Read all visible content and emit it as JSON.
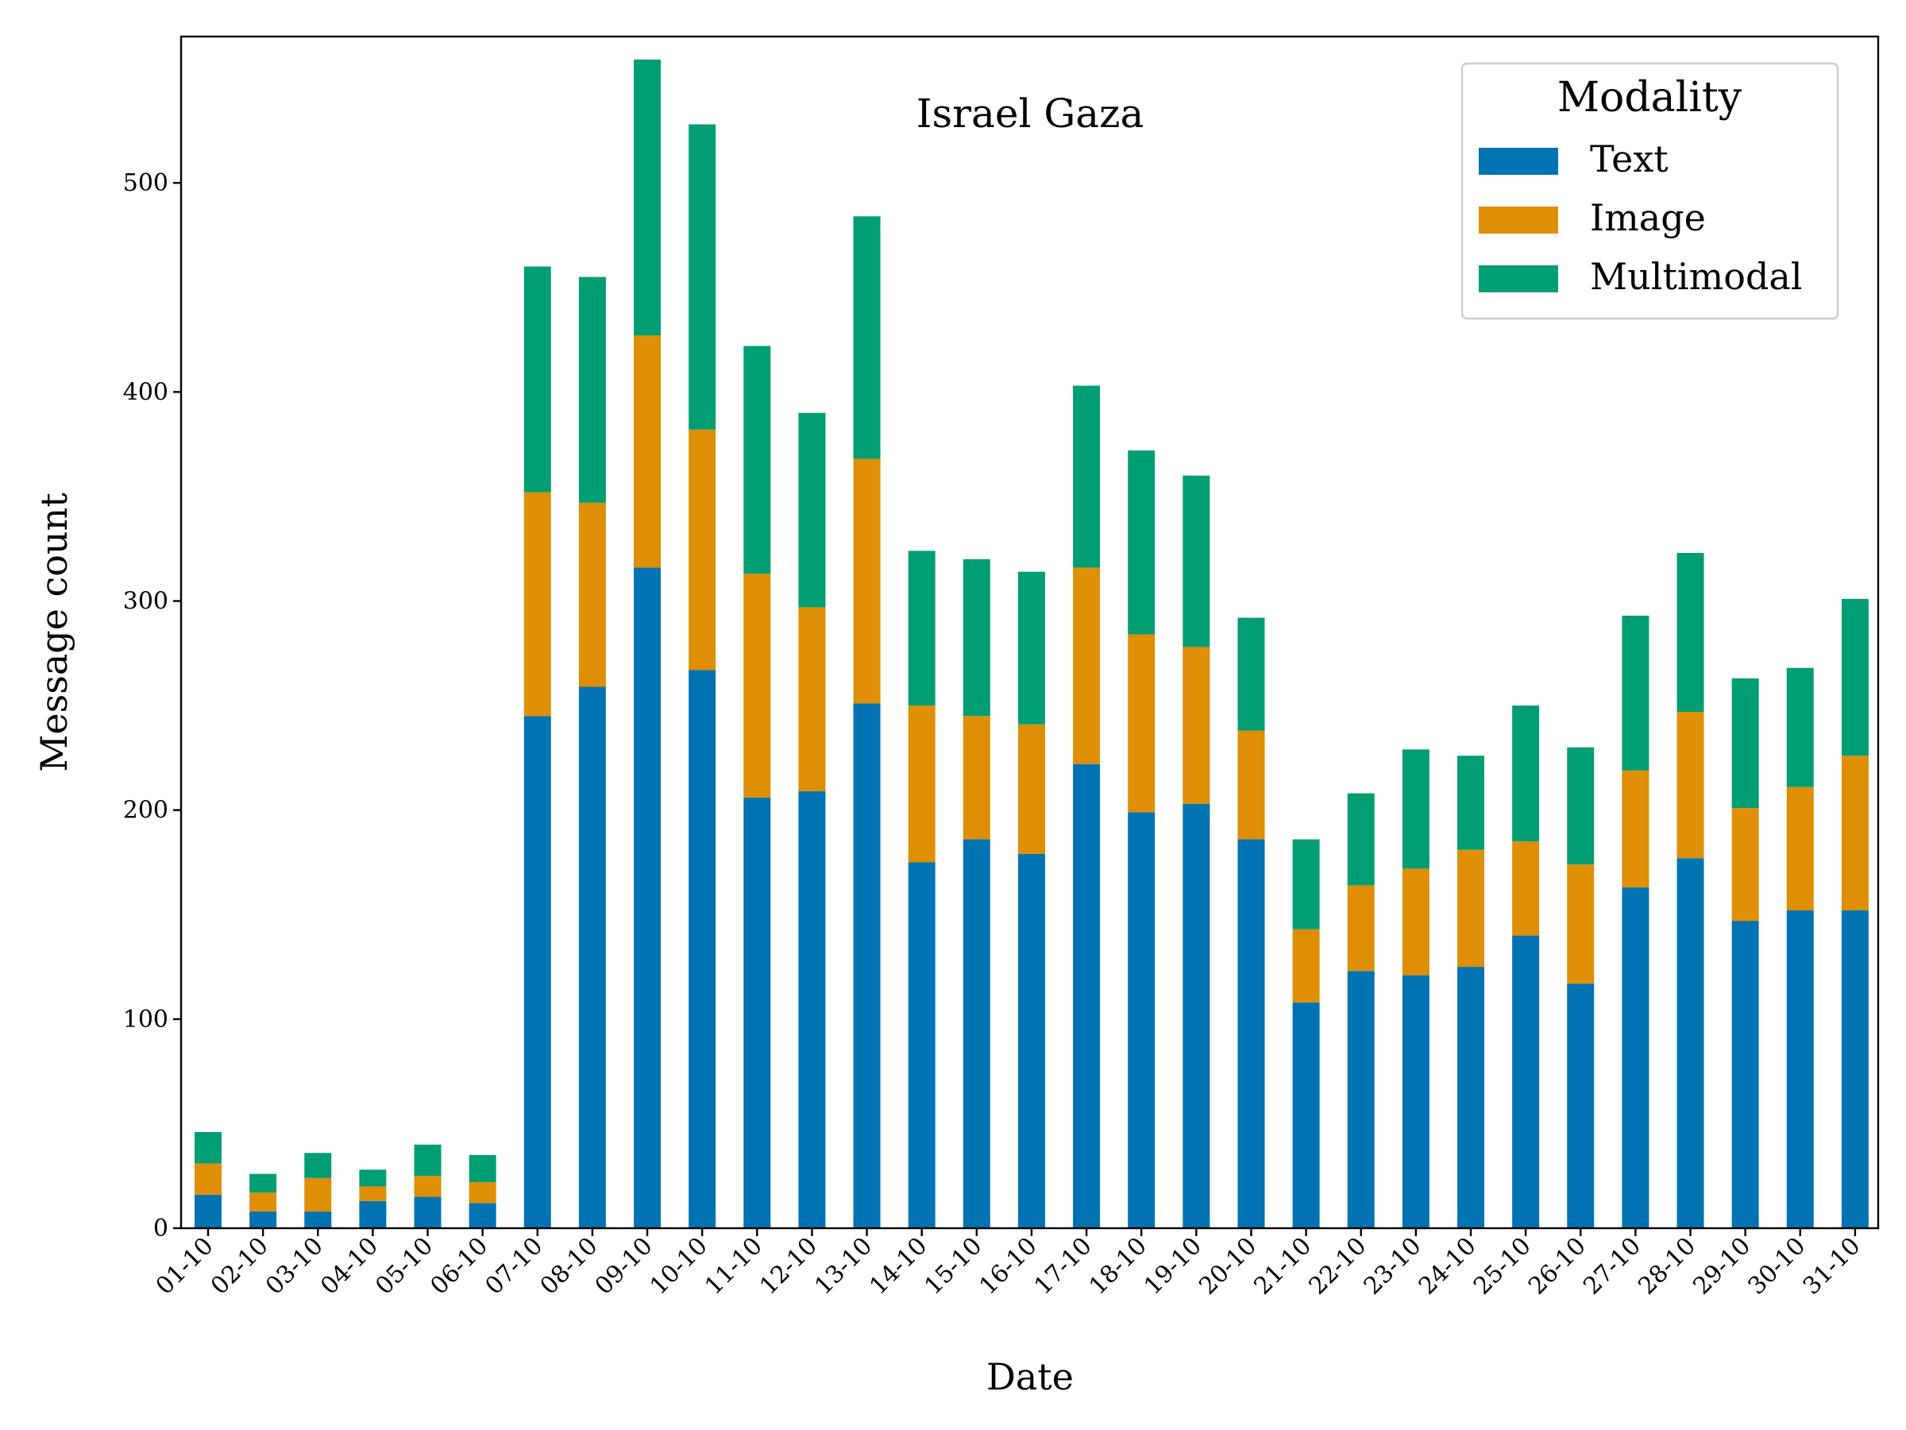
{
  "chart_data": {
    "type": "bar",
    "stacked": true,
    "title": "Israel Gaza",
    "xlabel": "Date",
    "ylabel": "Message count",
    "ylim": [
      0,
      570
    ],
    "yticks": [
      0,
      100,
      200,
      300,
      400,
      500
    ],
    "grid": false,
    "legend": {
      "title": "Modality",
      "placement": "top-right"
    },
    "categories": [
      "01-10",
      "02-10",
      "03-10",
      "04-10",
      "05-10",
      "06-10",
      "07-10",
      "08-10",
      "09-10",
      "10-10",
      "11-10",
      "12-10",
      "13-10",
      "14-10",
      "15-10",
      "16-10",
      "17-10",
      "18-10",
      "19-10",
      "20-10",
      "21-10",
      "22-10",
      "23-10",
      "24-10",
      "25-10",
      "26-10",
      "27-10",
      "28-10",
      "29-10",
      "30-10",
      "31-10"
    ],
    "series": [
      {
        "name": "Text",
        "color": "#0173b2",
        "values": [
          16,
          8,
          8,
          13,
          15,
          12,
          245,
          259,
          316,
          267,
          206,
          209,
          251,
          175,
          186,
          179,
          222,
          199,
          203,
          186,
          108,
          123,
          121,
          125,
          140,
          117,
          163,
          177,
          147,
          152,
          152
        ]
      },
      {
        "name": "Image",
        "color": "#de8f05",
        "values": [
          15,
          9,
          16,
          7,
          10,
          10,
          107,
          88,
          111,
          115,
          107,
          88,
          117,
          75,
          59,
          62,
          94,
          85,
          75,
          52,
          35,
          41,
          51,
          56,
          45,
          57,
          56,
          70,
          54,
          59,
          74
        ]
      },
      {
        "name": "Multimodal",
        "color": "#029e73",
        "values": [
          15,
          9,
          12,
          8,
          15,
          13,
          108,
          108,
          132,
          146,
          109,
          93,
          116,
          74,
          75,
          73,
          87,
          88,
          82,
          54,
          43,
          44,
          57,
          45,
          65,
          56,
          74,
          76,
          62,
          57,
          75
        ]
      }
    ]
  }
}
